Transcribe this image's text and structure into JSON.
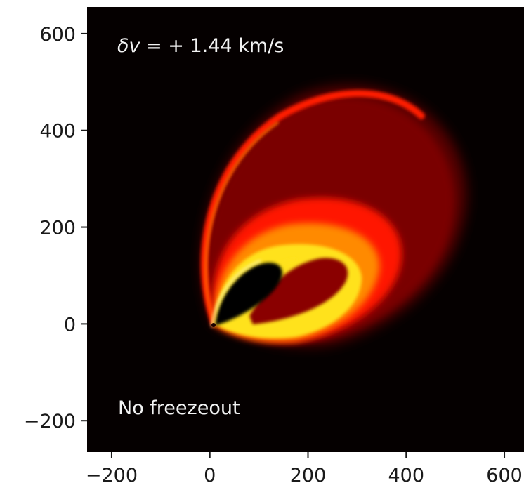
{
  "chart_data": {
    "type": "heatmap",
    "title": "",
    "xlabel": "",
    "ylabel": "",
    "xlim": [
      -250,
      640
    ],
    "ylim": [
      -265,
      655
    ],
    "xticks": [
      {
        "value": -200,
        "label": "−200"
      },
      {
        "value": 0,
        "label": "0"
      },
      {
        "value": 200,
        "label": "200"
      },
      {
        "value": 400,
        "label": "400"
      },
      {
        "value": 600,
        "label": "600"
      }
    ],
    "yticks": [
      {
        "value": -200,
        "label": "−200"
      },
      {
        "value": 0,
        "label": "0"
      },
      {
        "value": 200,
        "label": "200"
      },
      {
        "value": 400,
        "label": "400"
      },
      {
        "value": 600,
        "label": "600"
      }
    ],
    "colormap": "hot",
    "background_color": "#050000",
    "colors": {
      "dark_red": "#7a0000",
      "red": "#ff1200",
      "orange": "#ff8a00",
      "yellow": "#ffe21a",
      "pale_yellow": "#fff7a0"
    },
    "annotations": [
      {
        "id": "velocity",
        "text": "δv = + 1.44 km/s",
        "position": "top-left"
      },
      {
        "id": "freezeout",
        "text": "No freezeout",
        "position": "bottom-left"
      }
    ],
    "grid": false
  }
}
